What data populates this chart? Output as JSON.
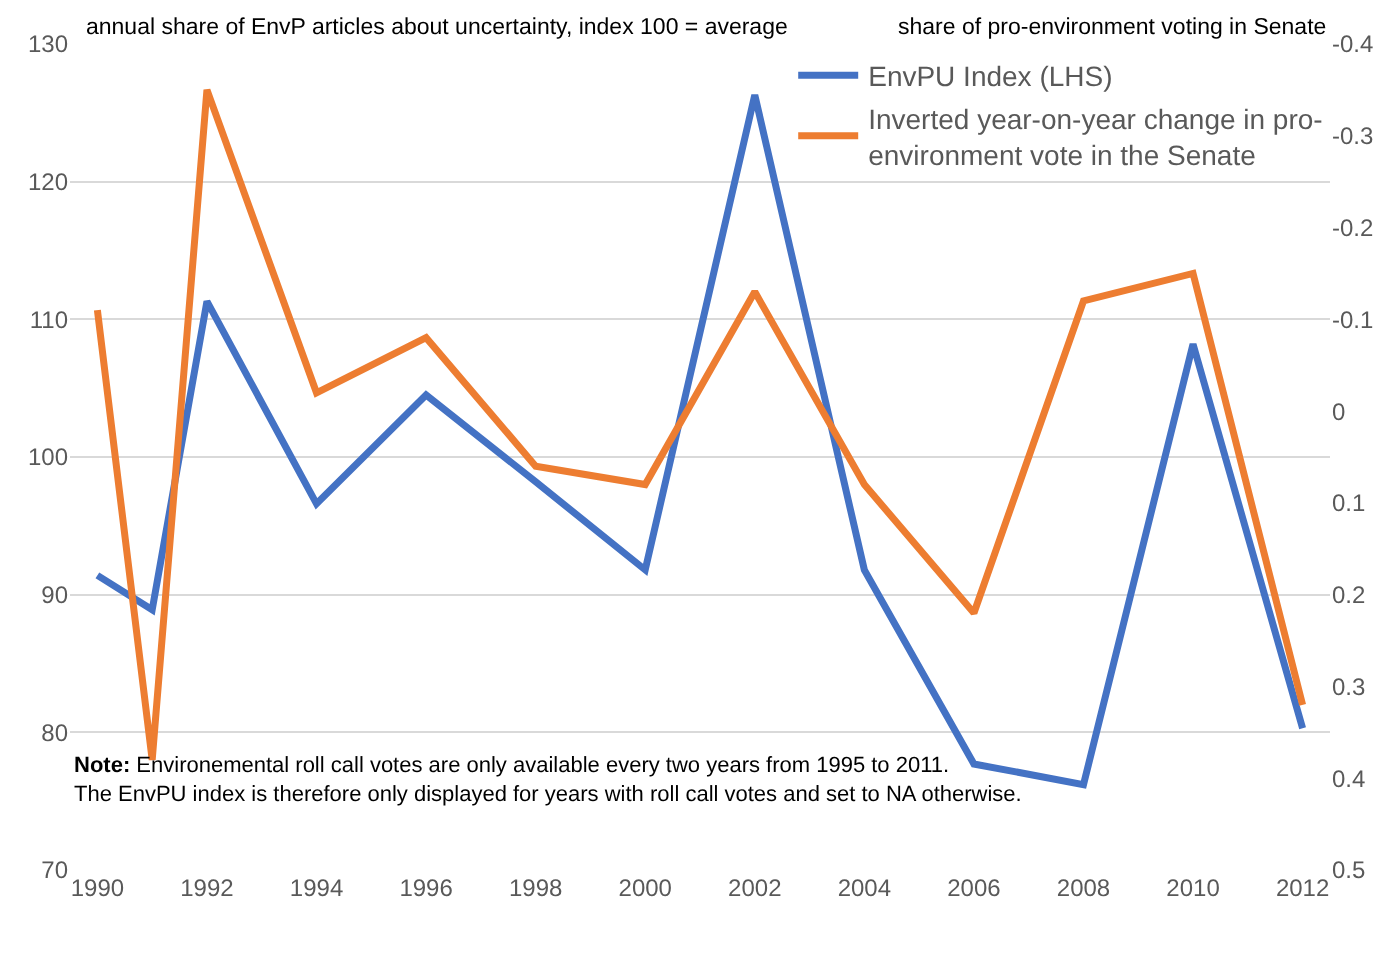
{
  "chart_data": {
    "type": "line",
    "ylabel": "annual share of EnvP articles about uncertainty, index 100 = average",
    "y2label": "share of pro-environment voting in Senate",
    "x": [
      1990,
      1991,
      1992,
      1994,
      1996,
      1998,
      2000,
      2002,
      2004,
      2006,
      2008,
      2010,
      2012
    ],
    "series": [
      {
        "name": "EnvPU Index (LHS)",
        "color": "#4472c4",
        "values": [
          91.4,
          88.9,
          111.3,
          96.6,
          104.5,
          98.2,
          91.8,
          126.3,
          91.8,
          77.7,
          76.2,
          108.2,
          80.3
        ]
      },
      {
        "name": "Inverted year-on-year change in pro-environment vote in the Senate",
        "color": "#ed7d31",
        "axis": "y2",
        "values": [
          -0.11,
          0.38,
          -0.35,
          -0.02,
          -0.08,
          0.06,
          0.08,
          -0.13,
          0.08,
          0.22,
          -0.12,
          -0.15,
          0.32
        ]
      }
    ],
    "xlim": [
      1989.5,
      2012.5
    ],
    "xticks": [
      1990,
      1992,
      1994,
      1996,
      1998,
      2000,
      2002,
      2004,
      2006,
      2008,
      2010,
      2012
    ],
    "ylim": [
      70,
      130
    ],
    "yticks": [
      70,
      80,
      90,
      100,
      110,
      120,
      130
    ],
    "y2lim": [
      0.5,
      -0.4
    ],
    "y2ticks": [
      -0.4,
      -0.3,
      -0.2,
      -0.1,
      0,
      0.1,
      0.2,
      0.3,
      0.4,
      0.5
    ],
    "grid": "y",
    "legend": "top right",
    "marker": "none",
    "line_style": "solid",
    "annotations": [
      "Note: Environemental roll call votes are only available every two years from 1995 to 2011.\nThe EnvPU index is therefore only displayed for years with roll call votes and set to NA otherwise."
    ]
  }
}
